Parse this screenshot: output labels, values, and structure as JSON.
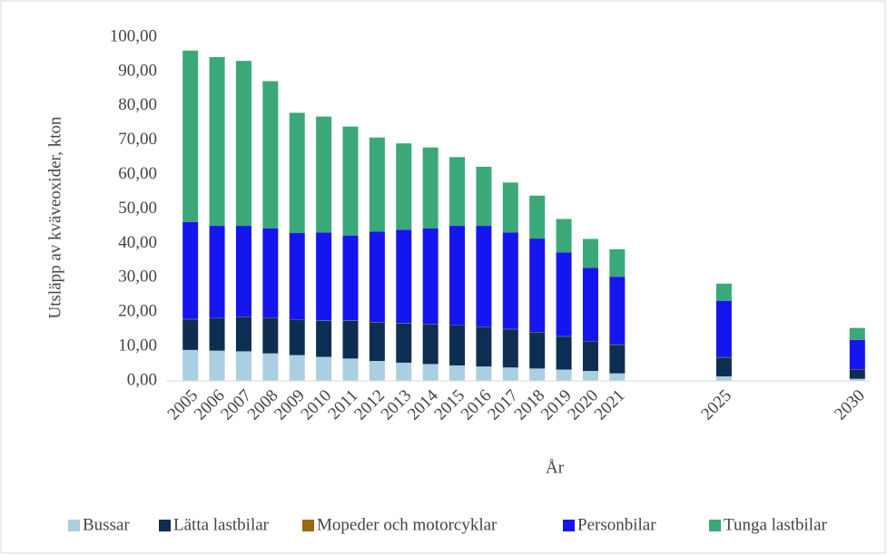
{
  "chart_data": {
    "type": "stacked_bar",
    "x_label": "År",
    "y_label": "Utsläpp av kväveoxider, kton",
    "categories": [
      "2005",
      "2006",
      "2007",
      "2008",
      "2009",
      "2010",
      "2011",
      "2012",
      "2013",
      "2014",
      "2015",
      "2016",
      "2017",
      "2018",
      "2019",
      "2020",
      "2021",
      null,
      null,
      null,
      "2025",
      null,
      null,
      null,
      null,
      "2030"
    ],
    "series": [
      {
        "name": "Bussar",
        "color": "#a9cfe0",
        "values": [
          9.0,
          8.8,
          8.6,
          8.0,
          7.5,
          7.0,
          6.5,
          5.8,
          5.3,
          4.9,
          4.5,
          4.2,
          3.9,
          3.6,
          3.3,
          2.9,
          2.2,
          null,
          null,
          null,
          1.3,
          null,
          null,
          null,
          null,
          0.6
        ]
      },
      {
        "name": "Lätta lastbilar",
        "color": "#0e2d52",
        "values": [
          8.9,
          9.4,
          9.9,
          10.2,
          10.2,
          10.5,
          11.0,
          11.2,
          11.4,
          11.5,
          11.6,
          11.4,
          11.1,
          10.5,
          9.6,
          8.6,
          8.3,
          null,
          null,
          null,
          5.5,
          null,
          null,
          null,
          null,
          2.6
        ]
      },
      {
        "name": "Mopeder och motorcyklar",
        "color": "#9a6a10",
        "values": [
          0.1,
          0.1,
          0.1,
          0.1,
          0.1,
          0.1,
          0.1,
          0.1,
          0.1,
          0.1,
          0.1,
          0.1,
          0.1,
          0.1,
          0.1,
          0.1,
          0.1,
          null,
          null,
          null,
          0.1,
          null,
          null,
          null,
          null,
          0.1
        ]
      },
      {
        "name": "Personbilar",
        "color": "#1515f0",
        "values": [
          28.2,
          26.8,
          26.5,
          26.1,
          25.2,
          25.6,
          24.7,
          26.3,
          27.2,
          27.9,
          28.9,
          29.4,
          28.1,
          27.2,
          24.4,
          21.3,
          19.7,
          null,
          null,
          null,
          16.4,
          null,
          null,
          null,
          null,
          8.6
        ]
      },
      {
        "name": "Tunga lastbilar",
        "color": "#3aa878",
        "values": [
          49.9,
          49.1,
          48.0,
          42.8,
          35.0,
          33.7,
          31.7,
          27.4,
          25.1,
          23.5,
          20.0,
          17.2,
          14.5,
          12.5,
          9.7,
          8.4,
          8.0,
          null,
          null,
          null,
          5.0,
          null,
          null,
          null,
          null,
          3.5
        ]
      }
    ],
    "ylim": [
      0,
      100
    ],
    "yticks": [
      {
        "value": 0,
        "label": "0,00"
      },
      {
        "value": 10,
        "label": "10,00"
      },
      {
        "value": 20,
        "label": "20,00"
      },
      {
        "value": 30,
        "label": "30,00"
      },
      {
        "value": 40,
        "label": "40,00"
      },
      {
        "value": 50,
        "label": "50,00"
      },
      {
        "value": 60,
        "label": "60,00"
      },
      {
        "value": 70,
        "label": "70,00"
      },
      {
        "value": 80,
        "label": "80,00"
      },
      {
        "value": 90,
        "label": "90,00"
      },
      {
        "value": 100,
        "label": "100,00"
      }
    ],
    "grid": false,
    "legend": "bottom"
  }
}
